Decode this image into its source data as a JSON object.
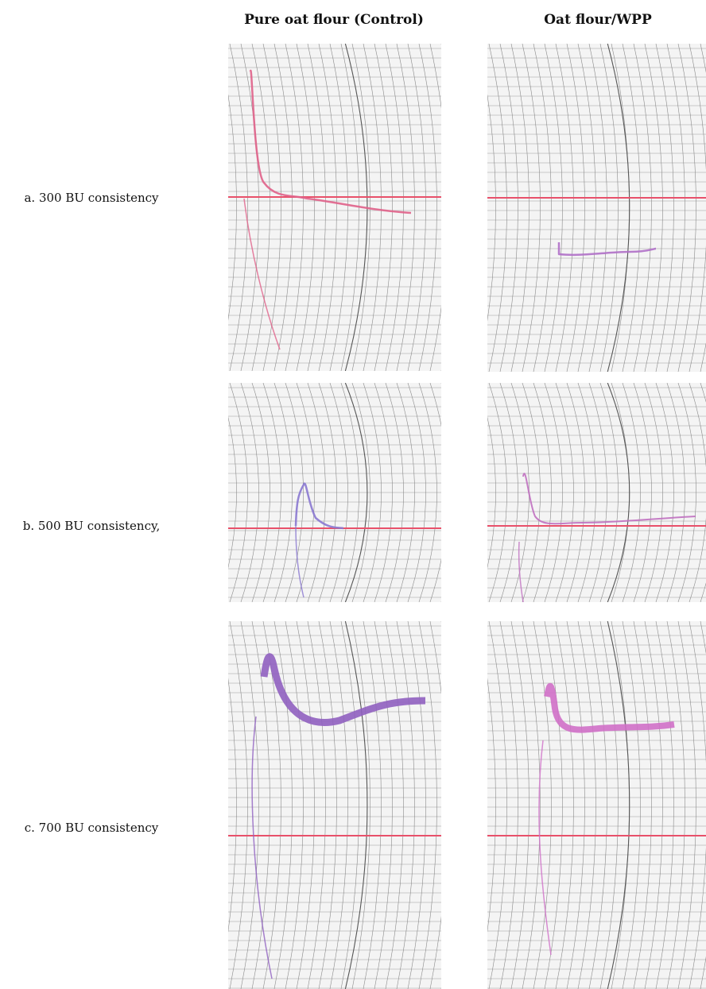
{
  "header": {
    "columns": [
      "Pure oat flour (Control)",
      "Oat flour/WPP"
    ]
  },
  "rows": [
    "a. 300 BU consistency",
    "b. 500 BU consistency,",
    "c. 700 BU consistency"
  ]
}
